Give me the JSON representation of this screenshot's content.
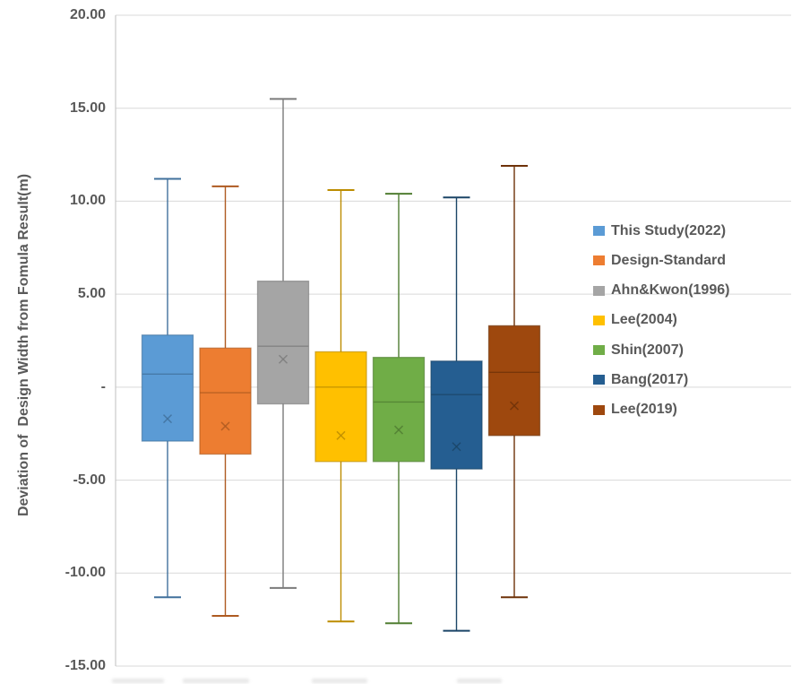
{
  "chart_data": {
    "type": "box",
    "title": "",
    "xlabel": "",
    "ylabel": "Deviation of  Design Width from Fomula Result(m)",
    "ylim": [
      -15,
      20
    ],
    "grid": true,
    "legend_position": "right",
    "axis_text_color": "#595959",
    "gridline_color": "#D9D9D9",
    "axis_line_color": "#BFBFBF",
    "y_ticks": [
      {
        "value": 20,
        "label": "20.00"
      },
      {
        "value": 15,
        "label": "15.00"
      },
      {
        "value": 10,
        "label": "10.00"
      },
      {
        "value": 5,
        "label": "5.00"
      },
      {
        "value": 0,
        "label": "-"
      },
      {
        "value": -5,
        "label": "-5.00"
      },
      {
        "value": -10,
        "label": "-10.00"
      },
      {
        "value": -15,
        "label": "-15.00"
      }
    ],
    "series": [
      {
        "name": "This Study(2022)",
        "fill": "#5B9BD5",
        "line": "#41719C",
        "whisker_low": -11.3,
        "q1": -2.9,
        "median": 0.7,
        "mean": -1.7,
        "q3": 2.8,
        "whisker_high": 11.2
      },
      {
        "name": "Design-Standard",
        "fill": "#ED7D31",
        "line": "#AE5A21",
        "whisker_low": -12.3,
        "q1": -3.6,
        "median": -0.3,
        "mean": -2.1,
        "q3": 2.1,
        "whisker_high": 10.8
      },
      {
        "name": "Ahn&Kwon(1996)",
        "fill": "#A5A5A5",
        "line": "#7B7B7B",
        "whisker_low": -10.8,
        "q1": -0.9,
        "median": 2.2,
        "mean": 1.5,
        "q3": 5.7,
        "whisker_high": 15.5
      },
      {
        "name": "Lee(2004)",
        "fill": "#FFC000",
        "line": "#BC8C00",
        "whisker_low": -12.6,
        "q1": -4.0,
        "median": 0.0,
        "mean": -2.6,
        "q3": 1.9,
        "whisker_high": 10.6
      },
      {
        "name": "Shin(2007)",
        "fill": "#70AD47",
        "line": "#507E32",
        "whisker_low": -12.7,
        "q1": -4.0,
        "median": -0.8,
        "mean": -2.3,
        "q3": 1.6,
        "whisker_high": 10.4
      },
      {
        "name": "Bang(2017)",
        "fill": "#255E91",
        "line": "#1B4567",
        "whisker_low": -13.1,
        "q1": -4.4,
        "median": -0.4,
        "mean": -3.2,
        "q3": 1.4,
        "whisker_high": 10.2
      },
      {
        "name": "Lee(2019)",
        "fill": "#9E480E",
        "line": "#6E3209",
        "whisker_low": -11.3,
        "q1": -2.6,
        "median": 0.8,
        "mean": -1.0,
        "q3": 3.3,
        "whisker_high": 11.9
      }
    ]
  }
}
